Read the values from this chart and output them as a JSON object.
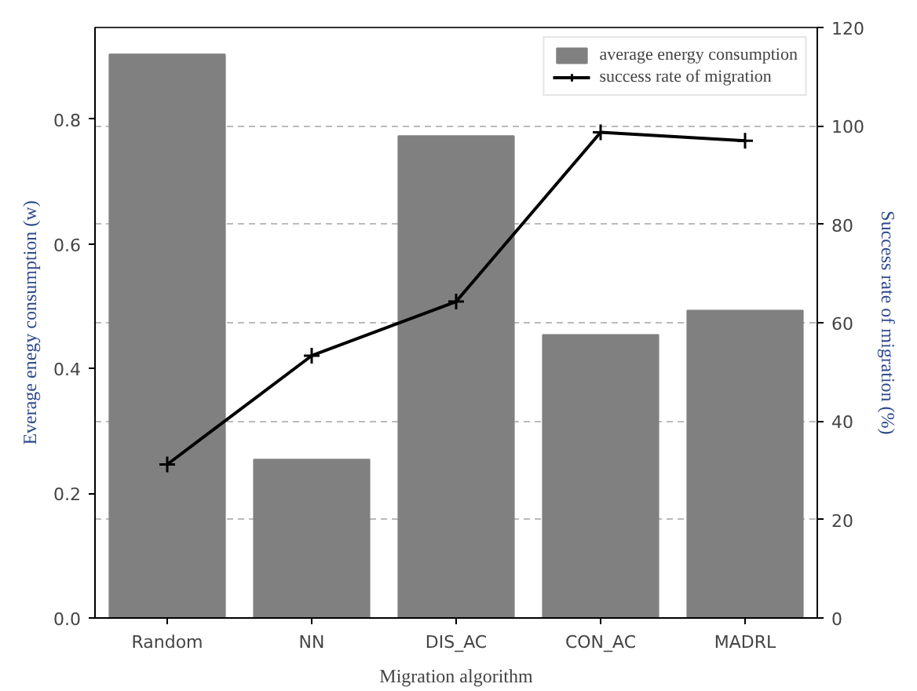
{
  "chart_data": {
    "type": "bar",
    "xlabel": "Migration algorithm",
    "ylabel": "Everage enegy consumption (w)",
    "y2label": "Success rate of migration (%)",
    "categories": [
      "Random",
      "NN",
      "DIS_AC",
      "CON_AC",
      "MADRL"
    ],
    "series": [
      {
        "name": "average energy consumption",
        "color": "#808080",
        "values": [
          0.904,
          0.254,
          0.773,
          0.454,
          0.493
        ]
      },
      {
        "name": "success rate of migration",
        "type": "line",
        "axis": "y2",
        "color": "#000000",
        "marker": "cross",
        "values": [
          31.2,
          53.3,
          64.3,
          98.7,
          97.0
        ]
      }
    ],
    "ylim": [
      0,
      0.947
    ],
    "yticks": [
      {
        "value": 0,
        "label": "0.0"
      },
      0.2,
      0.4,
      0.6,
      0.8
    ],
    "y2lim": [
      0,
      120
    ],
    "y2ticks": [
      0,
      20,
      40,
      60,
      80,
      100,
      120
    ],
    "grid": "y",
    "legend": "top right"
  }
}
